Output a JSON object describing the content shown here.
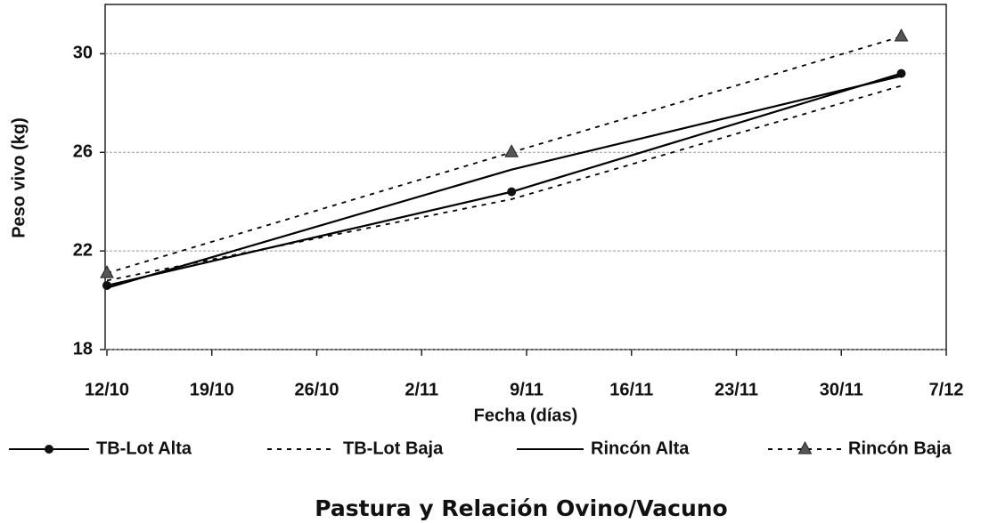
{
  "chart_data": {
    "type": "line",
    "title": "Pastura y Relación Ovino/Vacuno",
    "x_label": "Fecha (días)",
    "y_label": "Peso vivo (kg)",
    "x": [
      "12/10",
      "8/11",
      "4/12"
    ],
    "xlim": [
      "12/10",
      "7/12"
    ],
    "xticks": [
      "12/10",
      "19/10",
      "26/10",
      "2/11",
      "9/11",
      "16/11",
      "23/11",
      "30/11",
      "7/12"
    ],
    "ylim": [
      18,
      32
    ],
    "yticks": [
      18,
      22,
      26,
      30
    ],
    "grid": true,
    "legend": "bottom",
    "series": [
      {
        "name": "TB-Lot Alta",
        "color": "#000000",
        "dash": "solid",
        "marker": "circle",
        "values": [
          20.6,
          24.4,
          29.2
        ]
      },
      {
        "name": "TB-Lot Baja",
        "color": "#000000",
        "dash": "dotted",
        "marker": "none",
        "values": [
          20.8,
          24.1,
          28.7
        ]
      },
      {
        "name": "Rincón Alta",
        "color": "#000000",
        "dash": "solid",
        "marker": "none",
        "values": [
          20.5,
          25.3,
          29.1
        ]
      },
      {
        "name": "Rincón Baja",
        "color": "#000000",
        "dash": "dotted",
        "marker": "triangle",
        "values": [
          21.1,
          26.0,
          30.7
        ]
      }
    ]
  }
}
